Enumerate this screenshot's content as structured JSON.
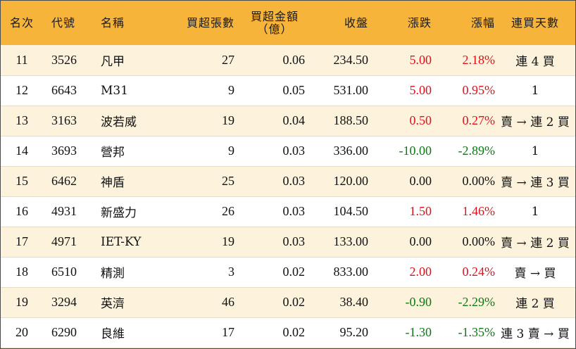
{
  "headers": {
    "rank": "名次",
    "code": "代號",
    "name": "名稱",
    "net_buy_lots": "買超張數",
    "net_buy_amount_line1": "買超金額",
    "net_buy_amount_line2": "（億）",
    "close": "收盤",
    "change": "漲跌",
    "change_pct": "漲幅",
    "consecutive_buy_days": "連買天數"
  },
  "colors": {
    "header_bg": "#f7b43a",
    "odd_row_bg": "#fdf3dc",
    "up": "#e0101a",
    "down": "#0a7a12"
  },
  "rows": [
    {
      "rank": "11",
      "code": "3526",
      "name": "凡甲",
      "lots": "27",
      "amount": "0.06",
      "close": "234.50",
      "change": "5.00",
      "pct": "2.18%",
      "trend": "up",
      "days": "連 4 買"
    },
    {
      "rank": "12",
      "code": "6643",
      "name": "M31",
      "lots": "9",
      "amount": "0.05",
      "close": "531.00",
      "change": "5.00",
      "pct": "0.95%",
      "trend": "up",
      "days": "1"
    },
    {
      "rank": "13",
      "code": "3163",
      "name": "波若威",
      "lots": "19",
      "amount": "0.04",
      "close": "188.50",
      "change": "0.50",
      "pct": "0.27%",
      "trend": "up",
      "days": "賣 → 連 2 買"
    },
    {
      "rank": "14",
      "code": "3693",
      "name": "營邦",
      "lots": "9",
      "amount": "0.03",
      "close": "336.00",
      "change": "-10.00",
      "pct": "-2.89%",
      "trend": "down",
      "days": "1"
    },
    {
      "rank": "15",
      "code": "6462",
      "name": "神盾",
      "lots": "25",
      "amount": "0.03",
      "close": "120.00",
      "change": "0.00",
      "pct": "0.00%",
      "trend": "flat",
      "days": "賣 → 連 3 買"
    },
    {
      "rank": "16",
      "code": "4931",
      "name": "新盛力",
      "lots": "26",
      "amount": "0.03",
      "close": "104.50",
      "change": "1.50",
      "pct": "1.46%",
      "trend": "up",
      "days": "1"
    },
    {
      "rank": "17",
      "code": "4971",
      "name": "IET-KY",
      "lots": "19",
      "amount": "0.03",
      "close": "133.00",
      "change": "0.00",
      "pct": "0.00%",
      "trend": "flat",
      "days": "賣 → 連 2 買"
    },
    {
      "rank": "18",
      "code": "6510",
      "name": "精測",
      "lots": "3",
      "amount": "0.02",
      "close": "833.00",
      "change": "2.00",
      "pct": "0.24%",
      "trend": "up",
      "days": "賣 → 買"
    },
    {
      "rank": "19",
      "code": "3294",
      "name": "英濟",
      "lots": "46",
      "amount": "0.02",
      "close": "38.40",
      "change": "-0.90",
      "pct": "-2.29%",
      "trend": "down",
      "days": "連 2 買"
    },
    {
      "rank": "20",
      "code": "6290",
      "name": "良維",
      "lots": "17",
      "amount": "0.02",
      "close": "95.20",
      "change": "-1.30",
      "pct": "-1.35%",
      "trend": "down",
      "days": "連 3 賣 → 買"
    }
  ]
}
